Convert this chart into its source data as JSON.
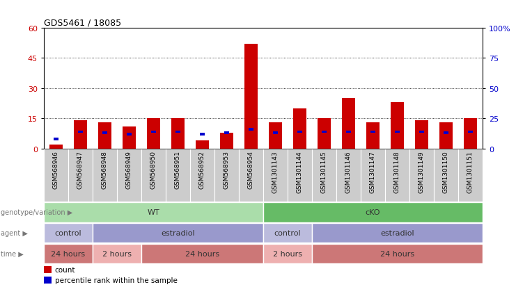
{
  "title": "GDS5461 / 18085",
  "samples": [
    "GSM568946",
    "GSM568947",
    "GSM568948",
    "GSM568949",
    "GSM568950",
    "GSM568951",
    "GSM568952",
    "GSM568953",
    "GSM568954",
    "GSM1301143",
    "GSM1301144",
    "GSM1301145",
    "GSM1301146",
    "GSM1301147",
    "GSM1301148",
    "GSM1301149",
    "GSM1301150",
    "GSM1301151"
  ],
  "count": [
    2,
    14,
    13,
    11,
    15,
    15,
    4,
    8,
    52,
    13,
    20,
    15,
    25,
    13,
    23,
    14,
    13,
    15
  ],
  "percentile": [
    8.0,
    14.0,
    13.0,
    12.0,
    14.0,
    14.0,
    12.0,
    13.0,
    16.0,
    13.0,
    14.0,
    14.0,
    14.0,
    14.0,
    14.0,
    14.0,
    13.0,
    14.0
  ],
  "ylim_left": [
    0,
    60
  ],
  "ylim_right": [
    0,
    100
  ],
  "yticks_left": [
    0,
    15,
    30,
    45,
    60
  ],
  "yticks_right": [
    0,
    25,
    50,
    75,
    100
  ],
  "bar_color": "#cc0000",
  "percentile_color": "#0000cc",
  "bg_color": "#ffffff",
  "genotype_row": {
    "label": "genotype/variation",
    "groups": [
      {
        "name": "WT",
        "start": 0,
        "end": 9,
        "color": "#aaddaa"
      },
      {
        "name": "cKO",
        "start": 9,
        "end": 18,
        "color": "#66bb66"
      }
    ]
  },
  "agent_row": {
    "label": "agent",
    "groups": [
      {
        "name": "control",
        "start": 0,
        "end": 2,
        "color": "#bbbbdd"
      },
      {
        "name": "estradiol",
        "start": 2,
        "end": 9,
        "color": "#9999cc"
      },
      {
        "name": "control",
        "start": 9,
        "end": 11,
        "color": "#bbbbdd"
      },
      {
        "name": "estradiol",
        "start": 11,
        "end": 18,
        "color": "#9999cc"
      }
    ]
  },
  "time_row": {
    "label": "time",
    "groups": [
      {
        "name": "24 hours",
        "start": 0,
        "end": 2,
        "color": "#cc7777"
      },
      {
        "name": "2 hours",
        "start": 2,
        "end": 4,
        "color": "#eeb0b0"
      },
      {
        "name": "24 hours",
        "start": 4,
        "end": 9,
        "color": "#cc7777"
      },
      {
        "name": "2 hours",
        "start": 9,
        "end": 11,
        "color": "#eeb0b0"
      },
      {
        "name": "24 hours",
        "start": 11,
        "end": 18,
        "color": "#cc7777"
      }
    ]
  },
  "legend": [
    {
      "label": "count",
      "color": "#cc0000"
    },
    {
      "label": "percentile rank within the sample",
      "color": "#0000cc"
    }
  ],
  "row_label_color": "#777777",
  "xticklabel_bg": "#cccccc",
  "grid_color": "#000000"
}
